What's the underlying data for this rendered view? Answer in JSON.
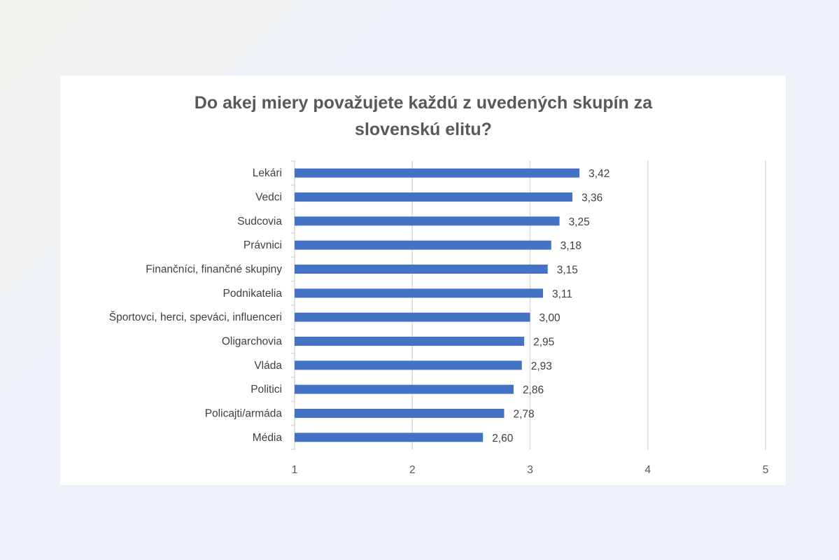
{
  "chart_data": {
    "type": "bar",
    "orientation": "horizontal",
    "title_lines": [
      "Do akej miery považujete každú z uvedených skupín za",
      "slovenskú elitu?"
    ],
    "categories": [
      "Lekári",
      "Vedci",
      "Sudcovia",
      "Právnici",
      "Finančníci, finančné skupiny",
      "Podnikatelia",
      "Športovci, herci, speváci, influenceri",
      "Oligarchovia",
      "Vláda",
      "Politici",
      "Policajti/armáda",
      "Média"
    ],
    "values": [
      3.42,
      3.36,
      3.25,
      3.18,
      3.15,
      3.11,
      3.0,
      2.95,
      2.93,
      2.86,
      2.78,
      2.6
    ],
    "value_labels": [
      "3,42",
      "3,36",
      "3,25",
      "3,18",
      "3,15",
      "3,11",
      "3,00",
      "2,95",
      "2,93",
      "2,86",
      "2,78",
      "2,60"
    ],
    "xlim": [
      1,
      5
    ],
    "xticks": [
      "1",
      "2",
      "3",
      "4",
      "5"
    ],
    "grid": true,
    "legend": "none",
    "xlabel": "",
    "ylabel": "",
    "bar_color": "#4472c4",
    "grid_color": "#d9d9d9"
  }
}
